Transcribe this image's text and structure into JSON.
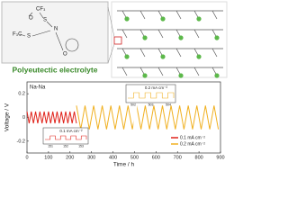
{
  "molecule": {
    "labels": [
      "CF₃",
      "O",
      "S",
      "N",
      "F₃C",
      "S",
      "O"
    ]
  },
  "banner": "Polyeutectic electrolyte",
  "chart_data": {
    "type": "line",
    "title": "Na-Na",
    "xlabel": "Time / h",
    "ylabel": "Voltage / V",
    "xlim": [
      0,
      900
    ],
    "xticks": [
      0,
      100,
      200,
      300,
      400,
      500,
      600,
      700,
      800,
      900
    ],
    "ylim": [
      -0.3,
      0.3
    ],
    "yticks": [
      -0.2,
      0,
      0.2
    ],
    "series": [
      {
        "name": "0.1 mA cm⁻²",
        "color": "#e0231b",
        "x": [
          0,
          10,
          20,
          30,
          40,
          50,
          60,
          70,
          80,
          90,
          100,
          110,
          120,
          130,
          140,
          150,
          160,
          170,
          180,
          190,
          200,
          210,
          220,
          230
        ],
        "values": [
          0.05,
          -0.05,
          0.05,
          -0.05,
          0.05,
          -0.05,
          0.05,
          -0.05,
          0.05,
          -0.05,
          0.05,
          -0.05,
          0.05,
          -0.05,
          0.05,
          -0.05,
          0.05,
          -0.05,
          0.05,
          -0.05,
          0.05,
          -0.05,
          0.05,
          -0.05
        ]
      },
      {
        "name": "0.2 mA cm⁻²",
        "color": "#f0b020",
        "x": [
          230,
          250,
          270,
          290,
          310,
          330,
          350,
          370,
          390,
          410,
          430,
          450,
          470,
          490,
          510,
          530,
          550,
          570,
          590,
          610,
          630,
          650,
          670,
          690,
          710,
          730,
          750,
          770,
          790,
          810,
          830,
          850,
          870,
          890
        ],
        "values": [
          0.1,
          -0.1,
          0.1,
          -0.1,
          0.1,
          -0.1,
          0.1,
          -0.1,
          0.1,
          -0.1,
          0.1,
          -0.1,
          0.1,
          -0.1,
          0.1,
          -0.1,
          0.1,
          -0.1,
          0.1,
          -0.1,
          0.1,
          -0.1,
          0.1,
          -0.1,
          0.1,
          -0.1,
          0.1,
          -0.1,
          0.1,
          -0.1,
          0.1,
          -0.1,
          0.1,
          -0.1
        ]
      }
    ],
    "insets": [
      {
        "label": "0.2 mA cm⁻²",
        "ticks": [
          "502",
          "503",
          "504"
        ]
      },
      {
        "label": "0.1 mA cm⁻²",
        "ticks": [
          "151",
          "152",
          "153"
        ]
      }
    ]
  }
}
